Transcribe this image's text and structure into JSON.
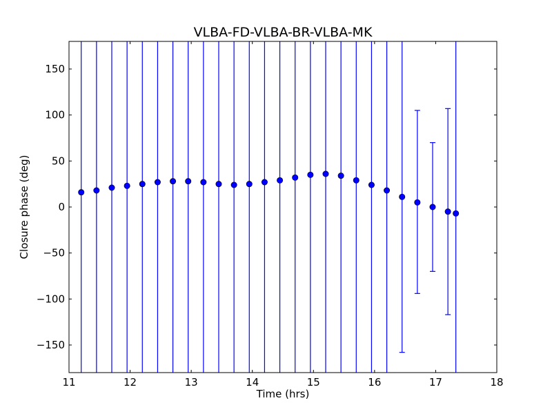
{
  "chart_data": {
    "type": "scatter",
    "title": "VLBA-FD-VLBA-BR-VLBA-MK",
    "xlabel": "Time (hrs)",
    "ylabel": "Closure phase (deg)",
    "xlim": [
      11,
      18
    ],
    "ylim": [
      -180,
      180
    ],
    "xticks": [
      11,
      12,
      13,
      14,
      15,
      16,
      17,
      18
    ],
    "xtick_labels": [
      "11",
      "12",
      "13",
      "14",
      "15",
      "16",
      "17",
      "18"
    ],
    "yticks": [
      -150,
      -100,
      -50,
      0,
      50,
      100,
      150
    ],
    "ytick_labels": [
      "−150",
      "−100",
      "−50",
      "0",
      "50",
      "100",
      "150"
    ],
    "grid": false,
    "legend": "none",
    "marker_color": "#0000ff",
    "errorbar_color": "#0000ff",
    "series": [
      {
        "x": [
          11.2,
          11.45,
          11.7,
          11.95,
          12.2,
          12.45,
          12.7,
          12.95,
          13.2,
          13.45,
          13.7,
          13.95,
          14.2,
          14.45,
          14.7,
          14.95,
          15.2,
          15.45,
          15.7,
          15.95,
          16.2,
          16.45,
          16.7,
          16.95,
          17.2,
          17.33
        ],
        "y": [
          16,
          18,
          21,
          23,
          25,
          27,
          28,
          28,
          27,
          25,
          24,
          25,
          27,
          29,
          32,
          35,
          36,
          34,
          29,
          24,
          18,
          11,
          5,
          0,
          -5,
          -7
        ],
        "yerr_low": [
          -180,
          -180,
          -180,
          -180,
          -180,
          -180,
          -180,
          -180,
          -180,
          -180,
          -180,
          -180,
          -180,
          -180,
          -180,
          -180,
          -180,
          -180,
          -180,
          -180,
          -180,
          -158,
          -94,
          -70,
          -117,
          -180
        ],
        "yerr_high": [
          180,
          180,
          180,
          180,
          180,
          180,
          180,
          180,
          180,
          180,
          180,
          180,
          180,
          180,
          180,
          180,
          180,
          180,
          180,
          180,
          180,
          180,
          105,
          70,
          107,
          180
        ]
      }
    ]
  }
}
